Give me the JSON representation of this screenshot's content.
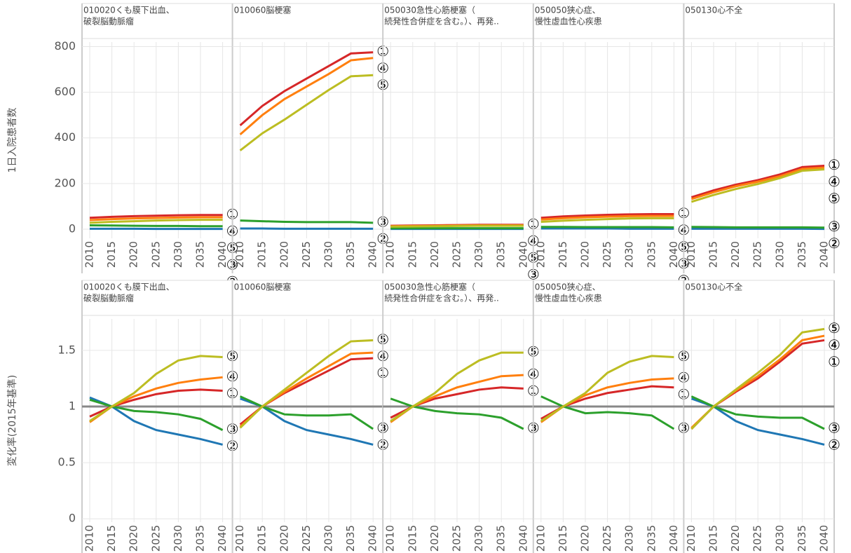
{
  "chart_data": [
    {
      "type": "line",
      "y_label": "1日入院患者数",
      "ylim": [
        -40,
        820
      ],
      "yticks": [
        0,
        200,
        400,
        600,
        800
      ],
      "x": [
        2010,
        2015,
        2020,
        2025,
        2030,
        2035,
        2040
      ],
      "grid": true,
      "panels": [
        {
          "title": [
            "010020くも膜下出血、",
            "破裂脳動脈瘤"
          ],
          "series": [
            {
              "name": "①",
              "color": "#d62728",
              "values": [
                50,
                54,
                57,
                59,
                61,
                62,
                62
              ]
            },
            {
              "name": "②",
              "color": "#1f77b4",
              "values": [
                2,
                2,
                2,
                1,
                1,
                1,
                1
              ]
            },
            {
              "name": "③",
              "color": "#2ca02c",
              "values": [
                17,
                16,
                15,
                14,
                14,
                13,
                13
              ]
            },
            {
              "name": "④",
              "color": "#ff7f0e",
              "values": [
                40,
                44,
                47,
                49,
                51,
                52,
                52
              ]
            },
            {
              "name": "⑤",
              "color": "#bcbd22",
              "values": [
                28,
                32,
                35,
                38,
                40,
                41,
                41
              ]
            }
          ]
        },
        {
          "title": [
            "010060脳梗塞"
          ],
          "series": [
            {
              "name": "①",
              "color": "#d62728",
              "values": [
                455,
                540,
                605,
                660,
                715,
                770,
                775
              ]
            },
            {
              "name": "②",
              "color": "#1f77b4",
              "values": [
                3,
                3,
                2,
                2,
                2,
                2,
                2
              ]
            },
            {
              "name": "③",
              "color": "#2ca02c",
              "values": [
                38,
                35,
                32,
                31,
                31,
                31,
                28
              ]
            },
            {
              "name": "④",
              "color": "#ff7f0e",
              "values": [
                415,
                500,
                570,
                625,
                680,
                740,
                750
              ]
            },
            {
              "name": "⑤",
              "color": "#bcbd22",
              "values": [
                345,
                420,
                480,
                545,
                610,
                670,
                675
              ]
            }
          ]
        },
        {
          "title": [
            "050030急性心筋梗塞（",
            "続発性合併症を含む。）、再発.."
          ],
          "series": [
            {
              "name": "①",
              "color": "#d62728",
              "values": [
                15,
                16,
                17,
                18,
                19,
                19,
                19
              ]
            },
            {
              "name": "②",
              "color": "#1f77b4",
              "values": [
                1,
                1,
                1,
                1,
                1,
                1,
                1
              ]
            },
            {
              "name": "③",
              "color": "#2ca02c",
              "values": [
                4,
                4,
                4,
                4,
                4,
                4,
                4
              ]
            },
            {
              "name": "④",
              "color": "#ff7f0e",
              "values": [
                13,
                14,
                15,
                16,
                17,
                17,
                17
              ]
            },
            {
              "name": "⑤",
              "color": "#bcbd22",
              "values": [
                11,
                12,
                13,
                14,
                15,
                15,
                15
              ]
            }
          ]
        },
        {
          "title": [
            "050050狭心症、",
            "慢性虚血性心疾患"
          ],
          "series": [
            {
              "name": "①",
              "color": "#d62728",
              "values": [
                50,
                56,
                60,
                63,
                65,
                66,
                66
              ]
            },
            {
              "name": "②",
              "color": "#1f77b4",
              "values": [
                3,
                3,
                3,
                3,
                2,
                2,
                2
              ]
            },
            {
              "name": "③",
              "color": "#2ca02c",
              "values": [
                10,
                10,
                9,
                9,
                9,
                9,
                8
              ]
            },
            {
              "name": "④",
              "color": "#ff7f0e",
              "values": [
                42,
                48,
                52,
                55,
                57,
                58,
                58
              ]
            },
            {
              "name": "⑤",
              "color": "#bcbd22",
              "values": [
                32,
                37,
                41,
                44,
                47,
                48,
                48
              ]
            }
          ]
        },
        {
          "title": [
            "050130心不全"
          ],
          "series": [
            {
              "name": "①",
              "color": "#d62728",
              "values": [
                140,
                170,
                195,
                215,
                240,
                272,
                278
              ]
            },
            {
              "name": "②",
              "color": "#1f77b4",
              "values": [
                2,
                2,
                2,
                2,
                2,
                2,
                1
              ]
            },
            {
              "name": "③",
              "color": "#2ca02c",
              "values": [
                10,
                9,
                8,
                8,
                8,
                8,
                7
              ]
            },
            {
              "name": "④",
              "color": "#ff7f0e",
              "values": [
                132,
                162,
                188,
                208,
                232,
                264,
                270
              ]
            },
            {
              "name": "⑤",
              "color": "#bcbd22",
              "values": [
                120,
                150,
                176,
                198,
                224,
                256,
                262
              ]
            }
          ]
        }
      ]
    },
    {
      "type": "line",
      "y_label": "変化率(2015年基準)",
      "ylim": [
        -0.03,
        1.78
      ],
      "yticks": [
        0,
        0.5,
        1,
        1.5
      ],
      "x": [
        2010,
        2015,
        2020,
        2025,
        2030,
        2035,
        2040
      ],
      "grid": true,
      "reference_line": 1,
      "panels": [
        {
          "title": [
            "010020くも膜下出血、",
            "破裂脳動脈瘤"
          ],
          "series": [
            {
              "name": "①",
              "color": "#d62728",
              "values": [
                0.91,
                1,
                1.06,
                1.11,
                1.14,
                1.15,
                1.14
              ]
            },
            {
              "name": "②",
              "color": "#1f77b4",
              "values": [
                1.08,
                1,
                0.87,
                0.79,
                0.75,
                0.71,
                0.66
              ]
            },
            {
              "name": "③",
              "color": "#2ca02c",
              "values": [
                1.06,
                1,
                0.96,
                0.95,
                0.93,
                0.89,
                0.79
              ]
            },
            {
              "name": "④",
              "color": "#ff7f0e",
              "values": [
                0.86,
                1,
                1.09,
                1.16,
                1.21,
                1.24,
                1.26
              ]
            },
            {
              "name": "⑤",
              "color": "#bcbd22",
              "values": [
                0.87,
                1,
                1.12,
                1.29,
                1.41,
                1.45,
                1.44
              ]
            }
          ]
        },
        {
          "title": [
            "010060脳梗塞"
          ],
          "series": [
            {
              "name": "①",
              "color": "#d62728",
              "values": [
                0.84,
                1,
                1.12,
                1.22,
                1.32,
                1.42,
                1.43
              ]
            },
            {
              "name": "②",
              "color": "#1f77b4",
              "values": [
                1.07,
                1,
                0.87,
                0.79,
                0.75,
                0.71,
                0.66
              ]
            },
            {
              "name": "③",
              "color": "#2ca02c",
              "values": [
                1.09,
                1,
                0.93,
                0.92,
                0.92,
                0.93,
                0.8
              ]
            },
            {
              "name": "④",
              "color": "#ff7f0e",
              "values": [
                0.82,
                1,
                1.13,
                1.25,
                1.36,
                1.47,
                1.48
              ]
            },
            {
              "name": "⑤",
              "color": "#bcbd22",
              "values": [
                0.81,
                1,
                1.15,
                1.3,
                1.45,
                1.58,
                1.59
              ]
            }
          ]
        },
        {
          "title": [
            "050030急性心筋梗塞（",
            "続発性合併症を含む。）、再発.."
          ],
          "series": [
            {
              "name": "①",
              "color": "#d62728",
              "values": [
                0.9,
                1,
                1.07,
                1.11,
                1.15,
                1.17,
                1.16
              ]
            },
            {
              "name": "③",
              "color": "#2ca02c",
              "values": [
                1.07,
                1,
                0.96,
                0.94,
                0.93,
                0.9,
                0.8
              ]
            },
            {
              "name": "④",
              "color": "#ff7f0e",
              "values": [
                0.86,
                1,
                1.09,
                1.17,
                1.22,
                1.27,
                1.28
              ]
            },
            {
              "name": "⑤",
              "color": "#bcbd22",
              "values": [
                0.87,
                1,
                1.12,
                1.29,
                1.41,
                1.48,
                1.48
              ]
            }
          ]
        },
        {
          "title": [
            "050050狭心症、",
            "慢性虚血性心疾患"
          ],
          "series": [
            {
              "name": "①",
              "color": "#d62728",
              "values": [
                0.89,
                1,
                1.07,
                1.12,
                1.15,
                1.18,
                1.17
              ]
            },
            {
              "name": "③",
              "color": "#2ca02c",
              "values": [
                1.09,
                1,
                0.94,
                0.95,
                0.94,
                0.92,
                0.8
              ]
            },
            {
              "name": "④",
              "color": "#ff7f0e",
              "values": [
                0.86,
                1,
                1.1,
                1.17,
                1.21,
                1.24,
                1.25
              ]
            },
            {
              "name": "⑤",
              "color": "#bcbd22",
              "values": [
                0.87,
                1,
                1.12,
                1.3,
                1.4,
                1.45,
                1.44
              ]
            }
          ]
        },
        {
          "title": [
            "050130心不全"
          ],
          "series": [
            {
              "name": "①",
              "color": "#d62728",
              "values": [
                0.8,
                1,
                1.13,
                1.25,
                1.4,
                1.56,
                1.59
              ]
            },
            {
              "name": "②",
              "color": "#1f77b4",
              "values": [
                1.07,
                1,
                0.87,
                0.79,
                0.75,
                0.71,
                0.66
              ]
            },
            {
              "name": "③",
              "color": "#2ca02c",
              "values": [
                1.09,
                1,
                0.93,
                0.91,
                0.9,
                0.9,
                0.8
              ]
            },
            {
              "name": "④",
              "color": "#ff7f0e",
              "values": [
                0.81,
                1,
                1.14,
                1.27,
                1.42,
                1.59,
                1.63
              ]
            },
            {
              "name": "⑤",
              "color": "#bcbd22",
              "values": [
                0.8,
                1,
                1.15,
                1.3,
                1.46,
                1.66,
                1.69
              ]
            }
          ]
        }
      ]
    }
  ]
}
